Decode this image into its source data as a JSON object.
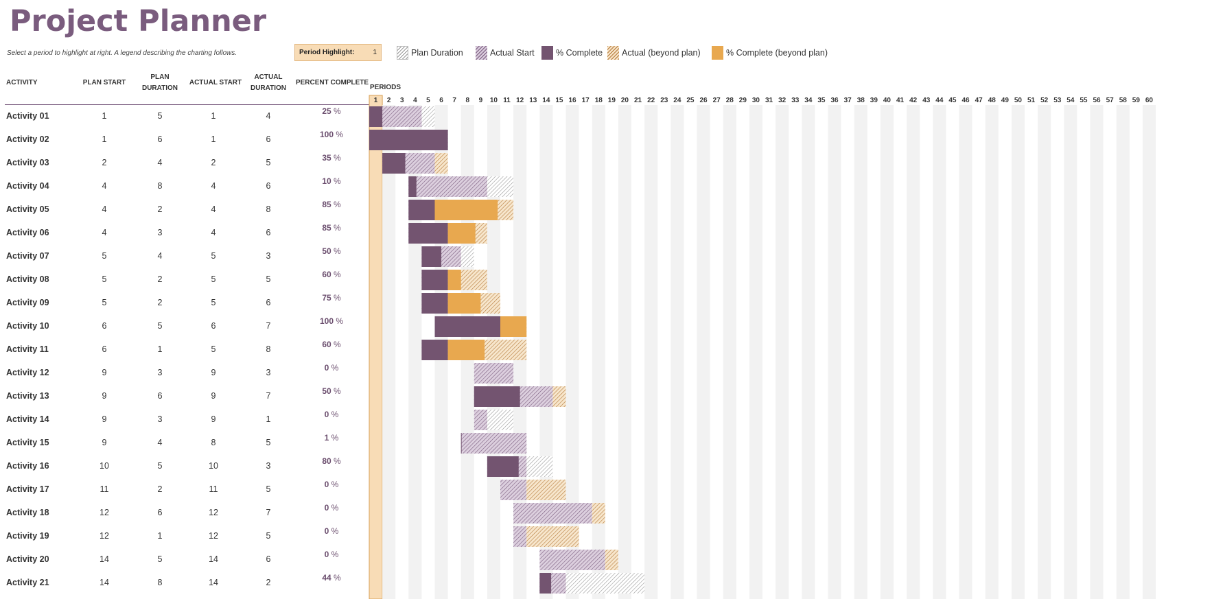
{
  "title": "Project Planner",
  "subtitle": "Select a period to highlight at right.  A legend describing the charting follows.",
  "period_highlight": {
    "label": "Period Highlight:",
    "value": "1"
  },
  "legend": [
    {
      "label": "Plan Duration"
    },
    {
      "label": "Actual Start"
    },
    {
      "label": "% Complete"
    },
    {
      "label": "Actual (beyond plan)"
    },
    {
      "label": "% Complete (beyond plan)"
    }
  ],
  "columns": {
    "activity": "ACTIVITY",
    "plan_start": "PLAN START",
    "plan_duration_1": "PLAN",
    "plan_duration_2": "DURATION",
    "actual_start": "ACTUAL START",
    "actual_duration_1": "ACTUAL",
    "actual_duration_2": "DURATION",
    "percent_complete": "PERCENT COMPLETE",
    "periods": "PERIODS"
  },
  "periods_count": 60,
  "colors": {
    "title": "#7a5c7e",
    "complete": "#735470",
    "complete_beyond": "#e8a84f",
    "actual": "#7a5c7e",
    "beyond": "#b57a3a",
    "highlight": "#f8dcb6",
    "stripe": "#f2f2f2"
  },
  "activities": [
    {
      "name": "Activity 01",
      "plan_start": "1",
      "plan_duration": "5",
      "actual_start": "1",
      "actual_duration": "4",
      "percent": "25"
    },
    {
      "name": "Activity 02",
      "plan_start": "1",
      "plan_duration": "6",
      "actual_start": "1",
      "actual_duration": "6",
      "percent": "100"
    },
    {
      "name": "Activity 03",
      "plan_start": "2",
      "plan_duration": "4",
      "actual_start": "2",
      "actual_duration": "5",
      "percent": "35"
    },
    {
      "name": "Activity 04",
      "plan_start": "4",
      "plan_duration": "8",
      "actual_start": "4",
      "actual_duration": "6",
      "percent": "10"
    },
    {
      "name": "Activity 05",
      "plan_start": "4",
      "plan_duration": "2",
      "actual_start": "4",
      "actual_duration": "8",
      "percent": "85"
    },
    {
      "name": "Activity 06",
      "plan_start": "4",
      "plan_duration": "3",
      "actual_start": "4",
      "actual_duration": "6",
      "percent": "85"
    },
    {
      "name": "Activity 07",
      "plan_start": "5",
      "plan_duration": "4",
      "actual_start": "5",
      "actual_duration": "3",
      "percent": "50"
    },
    {
      "name": "Activity 08",
      "plan_start": "5",
      "plan_duration": "2",
      "actual_start": "5",
      "actual_duration": "5",
      "percent": "60"
    },
    {
      "name": "Activity 09",
      "plan_start": "5",
      "plan_duration": "2",
      "actual_start": "5",
      "actual_duration": "6",
      "percent": "75"
    },
    {
      "name": "Activity 10",
      "plan_start": "6",
      "plan_duration": "5",
      "actual_start": "6",
      "actual_duration": "7",
      "percent": "100"
    },
    {
      "name": "Activity 11",
      "plan_start": "6",
      "plan_duration": "1",
      "actual_start": "5",
      "actual_duration": "8",
      "percent": "60"
    },
    {
      "name": "Activity 12",
      "plan_start": "9",
      "plan_duration": "3",
      "actual_start": "9",
      "actual_duration": "3",
      "percent": "0"
    },
    {
      "name": "Activity 13",
      "plan_start": "9",
      "plan_duration": "6",
      "actual_start": "9",
      "actual_duration": "7",
      "percent": "50"
    },
    {
      "name": "Activity 14",
      "plan_start": "9",
      "plan_duration": "3",
      "actual_start": "9",
      "actual_duration": "1",
      "percent": "0"
    },
    {
      "name": "Activity 15",
      "plan_start": "9",
      "plan_duration": "4",
      "actual_start": "8",
      "actual_duration": "5",
      "percent": "1"
    },
    {
      "name": "Activity 16",
      "plan_start": "10",
      "plan_duration": "5",
      "actual_start": "10",
      "actual_duration": "3",
      "percent": "80"
    },
    {
      "name": "Activity 17",
      "plan_start": "11",
      "plan_duration": "2",
      "actual_start": "11",
      "actual_duration": "5",
      "percent": "0"
    },
    {
      "name": "Activity 18",
      "plan_start": "12",
      "plan_duration": "6",
      "actual_start": "12",
      "actual_duration": "7",
      "percent": "0"
    },
    {
      "name": "Activity 19",
      "plan_start": "12",
      "plan_duration": "1",
      "actual_start": "12",
      "actual_duration": "5",
      "percent": "0"
    },
    {
      "name": "Activity 20",
      "plan_start": "14",
      "plan_duration": "5",
      "actual_start": "14",
      "actual_duration": "6",
      "percent": "0"
    },
    {
      "name": "Activity 21",
      "plan_start": "14",
      "plan_duration": "8",
      "actual_start": "14",
      "actual_duration": "2",
      "percent": "44"
    }
  ]
}
